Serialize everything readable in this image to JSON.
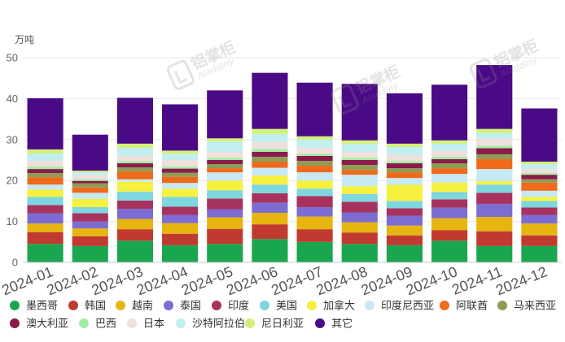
{
  "chart_data": {
    "type": "bar",
    "stacked": true,
    "ylabel": "万吨",
    "ylim": [
      0,
      50
    ],
    "yticks": [
      0,
      10,
      20,
      30,
      40,
      50
    ],
    "grid": true,
    "legend_position": "bottom",
    "categories": [
      "2024-01",
      "2024-02",
      "2024-03",
      "2024-04",
      "2024-05",
      "2024-06",
      "2024-07",
      "2024-08",
      "2024-09",
      "2024-10",
      "2024-11",
      "2024-12"
    ],
    "series": [
      {
        "name": "墨西哥",
        "color": "#1aa64e",
        "values": [
          4.5,
          4.0,
          5.3,
          4.2,
          4.5,
          5.7,
          5.0,
          4.5,
          4.2,
          5.3,
          4.0,
          4.0
        ]
      },
      {
        "name": "韩国",
        "color": "#c13a2f",
        "values": [
          2.9,
          2.4,
          2.8,
          2.8,
          3.7,
          3.6,
          3.1,
          2.8,
          2.4,
          2.6,
          3.6,
          2.6
        ]
      },
      {
        "name": "越南",
        "color": "#e6b510",
        "values": [
          2.1,
          1.9,
          2.5,
          2.6,
          2.8,
          2.8,
          3.1,
          2.5,
          2.4,
          2.9,
          3.5,
          2.9
        ]
      },
      {
        "name": "泰国",
        "color": "#7d6cd1",
        "values": [
          2.5,
          1.7,
          2.5,
          2.0,
          2.0,
          2.5,
          2.3,
          2.4,
          2.4,
          2.6,
          3.2,
          2.1
        ]
      },
      {
        "name": "印度",
        "color": "#a8325e",
        "values": [
          2.0,
          2.0,
          2.0,
          2.0,
          2.6,
          2.3,
          2.7,
          2.6,
          1.8,
          2.0,
          2.7,
          1.8
        ]
      },
      {
        "name": "美国",
        "color": "#7ed6df",
        "values": [
          2.0,
          1.5,
          2.2,
          2.4,
          2.0,
          2.1,
          1.8,
          1.9,
          1.8,
          1.8,
          2.0,
          1.6
        ]
      },
      {
        "name": "加拿大",
        "color": "#f6f03f",
        "values": [
          1.8,
          2.0,
          2.4,
          2.0,
          2.4,
          2.2,
          2.0,
          1.9,
          4.0,
          2.3,
          0.8,
          1.0
        ]
      },
      {
        "name": "印度尼西亚",
        "color": "#c6e9f5",
        "values": [
          1.2,
          1.5,
          0.6,
          1.4,
          2.0,
          1.9,
          2.0,
          2.8,
          1.6,
          2.1,
          3.0,
          1.5
        ]
      },
      {
        "name": "阿联酋",
        "color": "#ef6a1b",
        "values": [
          1.8,
          1.3,
          1.9,
          1.5,
          1.0,
          1.5,
          1.6,
          1.2,
          1.4,
          1.4,
          2.4,
          2.0
        ]
      },
      {
        "name": "马来西亚",
        "color": "#8e9c55",
        "values": [
          1.0,
          1.0,
          1.0,
          1.0,
          1.0,
          1.2,
          1.2,
          1.2,
          1.0,
          1.2,
          1.2,
          0.8
        ]
      },
      {
        "name": "澳大利亚",
        "color": "#8a1b4a",
        "values": [
          1.0,
          0.6,
          1.0,
          1.0,
          1.0,
          1.2,
          1.2,
          1.2,
          1.2,
          1.0,
          1.5,
          1.1
        ]
      },
      {
        "name": "巴西",
        "color": "#a3eda3",
        "values": [
          0.6,
          0.4,
          0.5,
          0.5,
          0.5,
          0.7,
          0.5,
          0.5,
          0.5,
          0.6,
          0.6,
          0.4
        ]
      },
      {
        "name": "日本",
        "color": "#efe0db",
        "values": [
          1.4,
          1.0,
          1.3,
          1.6,
          1.5,
          1.7,
          1.5,
          1.5,
          1.5,
          1.5,
          1.7,
          1.0
        ]
      },
      {
        "name": "沙特阿拉伯",
        "color": "#c3eeef",
        "values": [
          1.8,
          0.7,
          2.0,
          1.5,
          2.5,
          2.0,
          2.0,
          2.0,
          2.0,
          1.7,
          1.4,
          1.2
        ]
      },
      {
        "name": "尼日利亚",
        "color": "#d2f076",
        "values": [
          1.0,
          0.4,
          1.0,
          0.8,
          0.8,
          1.2,
          0.8,
          0.8,
          0.8,
          0.8,
          1.0,
          0.6
        ]
      },
      {
        "name": "其它",
        "color": "#4b0a85",
        "values": [
          12.5,
          8.8,
          11.2,
          11.3,
          11.7,
          13.7,
          13.1,
          13.8,
          12.3,
          13.6,
          15.6,
          13.0
        ]
      }
    ]
  },
  "watermark": {
    "brand_cn": "铝掌柜",
    "brand_en": "Aladdiny"
  }
}
